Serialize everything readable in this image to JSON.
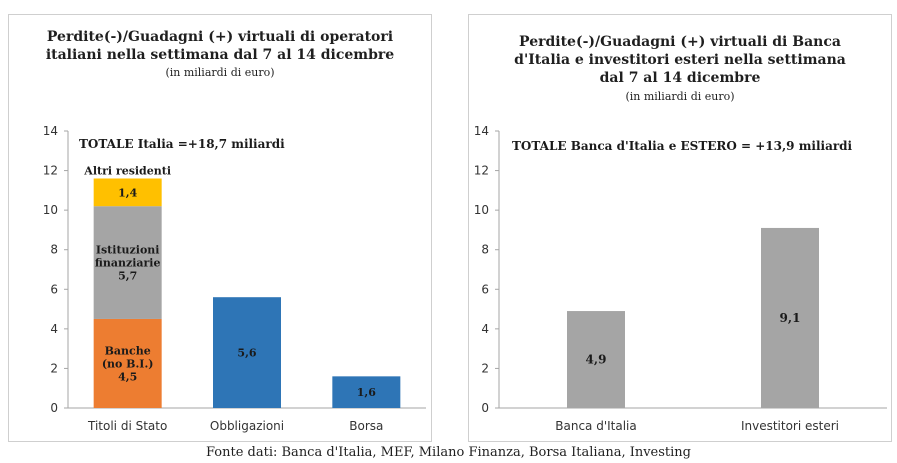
{
  "chart_data": [
    {
      "type": "bar",
      "stacked": true,
      "title_lines": [
        "Perdite(-)/Guadagni (+) virtuali di operatori",
        "italiani nella settimana dal 7 al 14 dicembre"
      ],
      "subtitle": "(in miliardi di euro)",
      "total_label": "TOTALE Italia =+18,7 miliardi",
      "categories": [
        "Titoli di Stato",
        "Obbligazioni",
        "Borsa"
      ],
      "ylim": [
        0,
        14
      ],
      "yticks": [
        "0",
        "2",
        "4",
        "6",
        "8",
        "10",
        "12",
        "14"
      ],
      "grid": false,
      "segments": [
        {
          "category": 0,
          "value": 4.5,
          "color": "#ed7d31",
          "lines": [
            "Banche",
            "(no B.I.)",
            "4,5"
          ],
          "label_color": "#1a1a1a"
        },
        {
          "category": 0,
          "value": 5.7,
          "color": "#a5a5a5",
          "lines": [
            "Istituzioni",
            "finanziarie",
            "5,7"
          ],
          "label_color": "#1a1a1a"
        },
        {
          "category": 0,
          "value": 1.4,
          "color": "#ffc000",
          "lines": [
            "1,4"
          ],
          "outside_label": "Altri residenti",
          "label_color": "#1a1a1a"
        },
        {
          "category": 1,
          "value": 5.6,
          "color": "#2e75b6",
          "lines": [
            "5,6"
          ],
          "label_color": "#1a1a1a"
        },
        {
          "category": 2,
          "value": 1.6,
          "color": "#2e75b6",
          "lines": [
            "1,6"
          ],
          "label_color": "#1a1a1a"
        }
      ]
    },
    {
      "type": "bar",
      "title_lines": [
        "Perdite(-)/Guadagni (+)  virtuali di Banca",
        "d'Italia e investitori esteri  nella settimana",
        "dal 7 al 14 dicembre"
      ],
      "subtitle": "(in miliardi di euro)",
      "total_label": "TOTALE Banca d'Italia e ESTERO = +13,9 miliardi",
      "categories": [
        "Banca d'Italia",
        "Investitori esteri"
      ],
      "values": [
        4.9,
        9.1
      ],
      "value_labels": [
        "4,9",
        "9,1"
      ],
      "colors": [
        "#a5a5a5",
        "#a5a5a5"
      ],
      "ylim": [
        0,
        14
      ],
      "yticks": [
        "0",
        "2",
        "4",
        "6",
        "8",
        "10",
        "12",
        "14"
      ],
      "grid": false
    }
  ],
  "source": "Fonte dati: Banca d'Italia, MEF, Milano Finanza, Borsa Italiana, Investing"
}
